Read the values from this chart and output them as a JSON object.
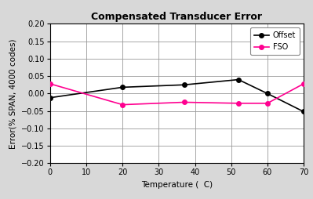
{
  "title": "Compensated Transducer Error",
  "xlabel": "Temperature (  C)",
  "ylabel": "Error(% SPAN, 4000 codes)",
  "xlim": [
    0,
    70
  ],
  "ylim": [
    -0.2,
    0.2
  ],
  "xticks": [
    0,
    10,
    20,
    30,
    40,
    50,
    60,
    70
  ],
  "yticks": [
    -0.2,
    -0.15,
    -0.1,
    -0.05,
    0,
    0.05,
    0.1,
    0.15,
    0.2
  ],
  "offset_x": [
    0,
    20,
    37,
    52,
    60,
    70
  ],
  "offset_y": [
    -0.012,
    0.018,
    0.025,
    0.04,
    0.0,
    -0.052
  ],
  "fso_x": [
    0,
    20,
    37,
    52,
    60,
    70
  ],
  "fso_y": [
    0.028,
    -0.032,
    -0.025,
    -0.028,
    -0.028,
    0.028
  ],
  "offset_color": "#000000",
  "fso_color": "#FF0090",
  "background_color": "#d8d8d8",
  "plot_bg_color": "#ffffff",
  "grid_color": "#999999",
  "title_fontsize": 9,
  "label_fontsize": 7.5,
  "tick_fontsize": 7,
  "legend_fontsize": 7
}
